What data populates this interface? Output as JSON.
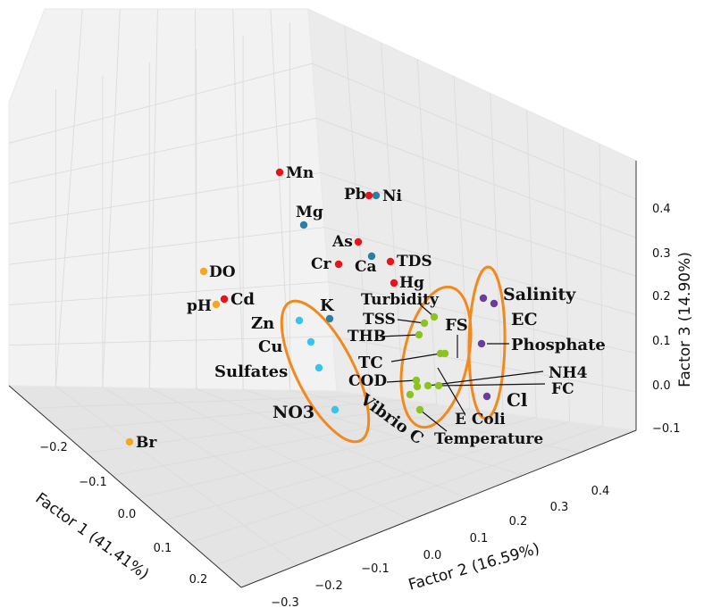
{
  "chart_data": {
    "type": "scatter",
    "title": "",
    "xlabel": "Factor 1 (41.41%)",
    "ylabel": "Factor 2 (16.59%)",
    "zlabel": "Factor 3 (14.90%)",
    "xticks": [
      "−0.2",
      "−0.1",
      "0.0",
      "0.1",
      "0.2"
    ],
    "yticks": [
      "−0.3",
      "−0.2",
      "−0.1",
      "0.0",
      "0.1",
      "0.2",
      "0.3",
      "0.4"
    ],
    "zticks": [
      "−0.1",
      "0.0",
      "0.1",
      "0.2",
      "0.3",
      "0.4"
    ],
    "grid": true,
    "colors": {
      "red": "#e8141c",
      "teal": "#2b7fa3",
      "orange": "#f5a623",
      "cyan": "#36c3ef",
      "green": "#8cc320",
      "purple": "#6a3d9a",
      "ellipse": "#f2891c"
    },
    "points": [
      {
        "label": "Mn",
        "color": "red"
      },
      {
        "label": "Pb",
        "color": "red"
      },
      {
        "label": "Ni",
        "color": "teal"
      },
      {
        "label": "Mg",
        "color": "teal"
      },
      {
        "label": "As",
        "color": "red"
      },
      {
        "label": "Cr",
        "color": "red"
      },
      {
        "label": "Ca",
        "color": "teal"
      },
      {
        "label": "TDS",
        "color": "red"
      },
      {
        "label": "Hg",
        "color": "red"
      },
      {
        "label": "DO",
        "color": "orange"
      },
      {
        "label": "Cd",
        "color": "red"
      },
      {
        "label": "pH",
        "color": "orange"
      },
      {
        "label": "K",
        "color": "teal"
      },
      {
        "label": "Zn",
        "color": "cyan"
      },
      {
        "label": "Cu",
        "color": "cyan"
      },
      {
        "label": "Sulfates",
        "color": "cyan"
      },
      {
        "label": "NO3",
        "color": "cyan"
      },
      {
        "label": "Br",
        "color": "orange"
      },
      {
        "label": "Turbidity",
        "color": "green"
      },
      {
        "label": "TSS",
        "color": "green"
      },
      {
        "label": "THB",
        "color": "green"
      },
      {
        "label": "FS",
        "color": "green"
      },
      {
        "label": "TC",
        "color": "green"
      },
      {
        "label": "COD",
        "color": "green"
      },
      {
        "label": "Vibrio C",
        "color": "green"
      },
      {
        "label": "E Coli",
        "color": "green"
      },
      {
        "label": "Temperature",
        "color": "green"
      },
      {
        "label": "NH4",
        "color": "green"
      },
      {
        "label": "FC",
        "color": "green"
      },
      {
        "label": "Salinity",
        "color": "purple"
      },
      {
        "label": "EC",
        "color": "purple"
      },
      {
        "label": "Phosphate",
        "color": "purple"
      },
      {
        "label": "Cl",
        "color": "purple"
      }
    ]
  }
}
